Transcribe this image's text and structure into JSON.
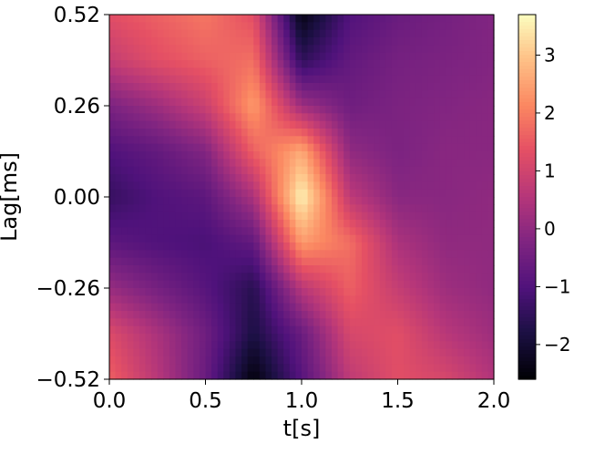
{
  "chart_data": {
    "type": "heatmap",
    "title": "",
    "xlabel": "t[s]",
    "ylabel": "Lag[ms]",
    "xlim": [
      0.0,
      2.0
    ],
    "ylim": [
      -0.52,
      0.52
    ],
    "x_ticks": [
      "0.0",
      "0.5",
      "1.0",
      "1.5",
      "2.0"
    ],
    "x_tick_values": [
      0.0,
      0.5,
      1.0,
      1.5,
      2.0
    ],
    "y_ticks": [
      "0.52",
      "0.26",
      "0.00",
      "−0.26",
      "−0.52"
    ],
    "y_tick_values": [
      0.52,
      0.26,
      0.0,
      -0.26,
      -0.52
    ],
    "colormap": "magma",
    "colorbar": {
      "range": [
        -2.6,
        3.7
      ],
      "ticks": [
        "3",
        "2",
        "1",
        "0",
        "−1",
        "−2"
      ],
      "tick_values": [
        3,
        2,
        1,
        0,
        -1,
        -2
      ]
    },
    "z_grid": {
      "x": [
        0.0,
        0.25,
        0.5,
        0.75,
        1.0,
        1.25,
        1.5,
        1.75,
        2.0
      ],
      "y": [
        0.52,
        0.39,
        0.26,
        0.13,
        0.0,
        -0.13,
        -0.26,
        -0.39,
        -0.52
      ],
      "z": [
        [
          1.3,
          1.6,
          1.9,
          1.3,
          -2.4,
          -1.0,
          -0.6,
          -0.4,
          -0.2
        ],
        [
          0.8,
          1.3,
          1.6,
          1.8,
          -1.5,
          -0.7,
          -0.4,
          -0.3,
          -0.2
        ],
        [
          -0.3,
          0.2,
          0.9,
          2.4,
          0.2,
          -0.5,
          -0.3,
          -0.2,
          -0.1
        ],
        [
          -1.0,
          -0.7,
          -0.2,
          1.6,
          2.6,
          0.0,
          -0.3,
          -0.1,
          -0.1
        ],
        [
          -1.4,
          -1.0,
          -0.8,
          0.4,
          3.6,
          0.7,
          -0.1,
          -0.1,
          0.0
        ],
        [
          -0.8,
          -1.0,
          -1.1,
          -0.7,
          2.4,
          1.8,
          0.4,
          0.0,
          0.0
        ],
        [
          0.1,
          -0.4,
          -0.9,
          -1.6,
          0.6,
          1.6,
          0.8,
          0.2,
          0.0
        ],
        [
          1.2,
          0.4,
          -0.5,
          -1.8,
          -0.6,
          1.1,
          1.3,
          0.6,
          0.2
        ],
        [
          1.6,
          0.6,
          -0.6,
          -2.5,
          -0.9,
          0.7,
          1.3,
          1.1,
          0.5
        ]
      ]
    }
  }
}
